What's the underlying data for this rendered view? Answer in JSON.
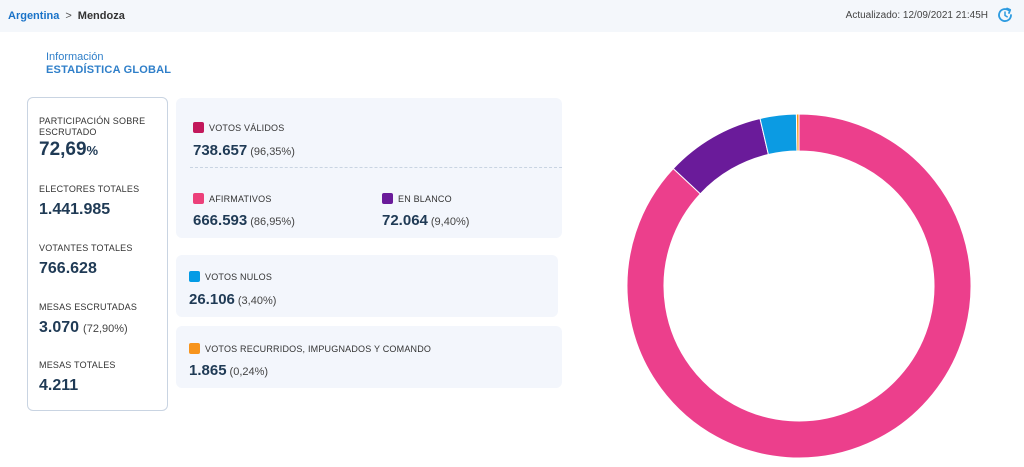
{
  "breadcrumb": {
    "country": "Argentina",
    "separator": ">",
    "province": "Mendoza"
  },
  "updated": "Actualizado: 12/09/2021 21:45H",
  "info": {
    "title": "Información",
    "subtitle": "ESTADÍSTICA GLOBAL"
  },
  "summary": {
    "participacion": {
      "label_line1": "PARTICIPACIÓN SOBRE",
      "label_line2": "ESCRUTADO",
      "value": "72,69",
      "unit": "%"
    },
    "electores": {
      "label": "ELECTORES TOTALES",
      "value": "1.441.985"
    },
    "votantes": {
      "label": "VOTANTES TOTALES",
      "value": "766.628"
    },
    "mesas_escrutadas": {
      "label": "MESAS ESCRUTADAS",
      "value": "3.070",
      "pct": "(72,90%)"
    },
    "mesas_totales": {
      "label": "MESAS TOTALES",
      "value": "4.211"
    }
  },
  "cards": {
    "validos": {
      "label": "VOTOS VÁLIDOS",
      "value": "738.657",
      "pct": "(96,35%)",
      "color": "#c2185b"
    },
    "afirmativos": {
      "label": "AFIRMATIVOS",
      "value": "666.593",
      "pct": "(86,95%)",
      "color": "#ec407a"
    },
    "blanco": {
      "label": "EN BLANCO",
      "value": "72.064",
      "pct": "(9,40%)",
      "color": "#6a1b9a"
    },
    "nulos": {
      "label": "VOTOS NULOS",
      "value": "26.106",
      "pct": "(3,40%)",
      "color": "#039be5"
    },
    "recurridos": {
      "label": "VOTOS RECURRIDOS, IMPUGNADOS Y COMANDO",
      "value": "1.865",
      "pct": "(0,24%)",
      "color": "#f7941d"
    }
  },
  "chart_data": {
    "type": "pie",
    "categories": [
      "AFIRMATIVOS",
      "EN BLANCO",
      "VOTOS NULOS",
      "VOTOS RECURRIDOS, IMPUGNADOS Y COMANDO"
    ],
    "values": [
      86.95,
      9.4,
      3.4,
      0.24
    ],
    "colors": [
      "#ec3f8c",
      "#6a1b9a",
      "#0b9be3",
      "#f7941d"
    ],
    "donut": true
  }
}
